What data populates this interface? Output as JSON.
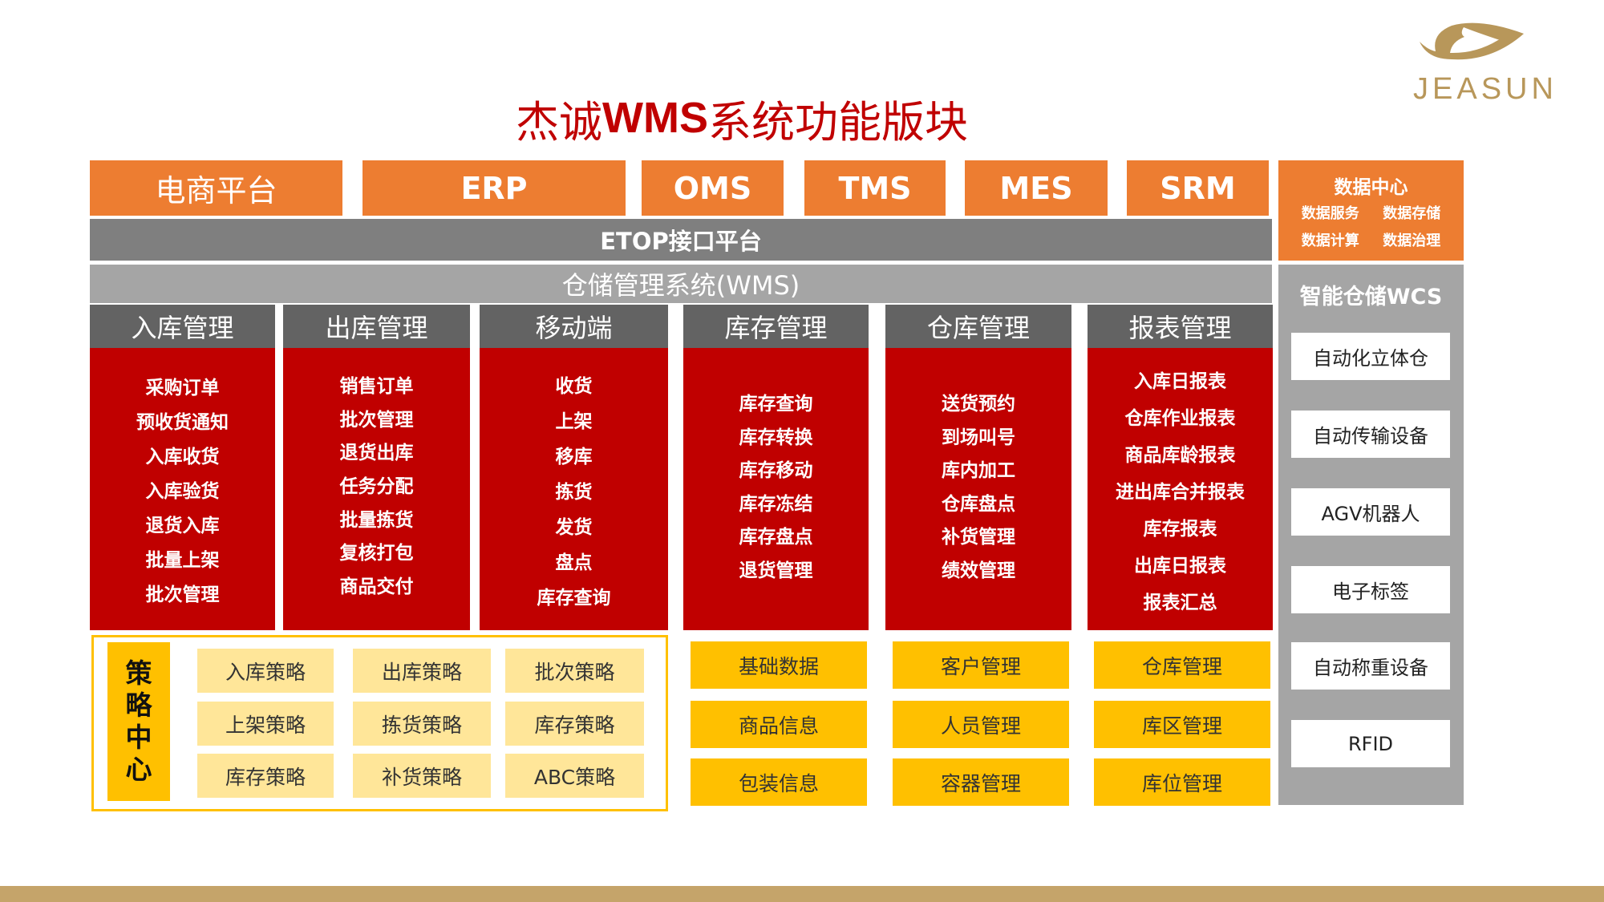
{
  "title": {
    "prefix": "杰诚",
    "bold": "WMS",
    "suffix": "系统功能版块"
  },
  "logo": {
    "text": "JEASUN"
  },
  "top_systems": [
    "电商平台",
    "ERP",
    "OMS",
    "TMS",
    "MES",
    "SRM"
  ],
  "data_center": {
    "title": "数据中心",
    "items": [
      "数据服务",
      "数据存储",
      "数据计算",
      "数据治理"
    ]
  },
  "etop": "ETOP接口平台",
  "wms": "仓储管理系统(WMS)",
  "modules": [
    {
      "title": "入库管理",
      "items": [
        "采购订单",
        "预收货通知",
        "入库收货",
        "入库验货",
        "退货入库",
        "批量上架",
        "批次管理"
      ]
    },
    {
      "title": "出库管理",
      "items": [
        "销售订单",
        "批次管理",
        "退货出库",
        "任务分配",
        "批量拣货",
        "复核打包",
        "商品交付"
      ]
    },
    {
      "title": "移动端",
      "items": [
        "收货",
        "上架",
        "移库",
        "拣货",
        "发货",
        "盘点",
        "库存查询"
      ]
    },
    {
      "title": "库存管理",
      "items": [
        "库存查询",
        "库存转换",
        "库存移动",
        "库存冻结",
        "库存盘点",
        "退货管理"
      ]
    },
    {
      "title": "仓库管理",
      "items": [
        "送货预约",
        "到场叫号",
        "库内加工",
        "仓库盘点",
        "补货管理",
        "绩效管理"
      ]
    },
    {
      "title": "报表管理",
      "items": [
        "入库日报表",
        "仓库作业报表",
        "商品库龄报表",
        "进出库合并报表",
        "库存报表",
        "出库日报表",
        "报表汇总"
      ]
    }
  ],
  "wcs": {
    "title": "智能仓储WCS",
    "items": [
      "自动化立体仓",
      "自动传输设备",
      "AGV机器人",
      "电子标签",
      "自动称重设备",
      "RFID"
    ]
  },
  "strategy": {
    "title": "策略中心",
    "items": [
      "入库策略",
      "出库策略",
      "批次策略",
      "上架策略",
      "拣货策略",
      "库存策略",
      "库存策略",
      "补货策略",
      "ABC策略"
    ]
  },
  "basic": [
    "基础数据",
    "客户管理",
    "仓库管理",
    "商品信息",
    "人员管理",
    "库区管理",
    "包装信息",
    "容器管理",
    "库位管理"
  ],
  "colors": {
    "orange": "#ED7D31",
    "red": "#C00000",
    "yellow": "#FFC000",
    "light_yellow": "#FFE699",
    "gray": "#A5A5A5",
    "dark_gray": "#7F7F7F",
    "gold": "#C5A46A"
  }
}
